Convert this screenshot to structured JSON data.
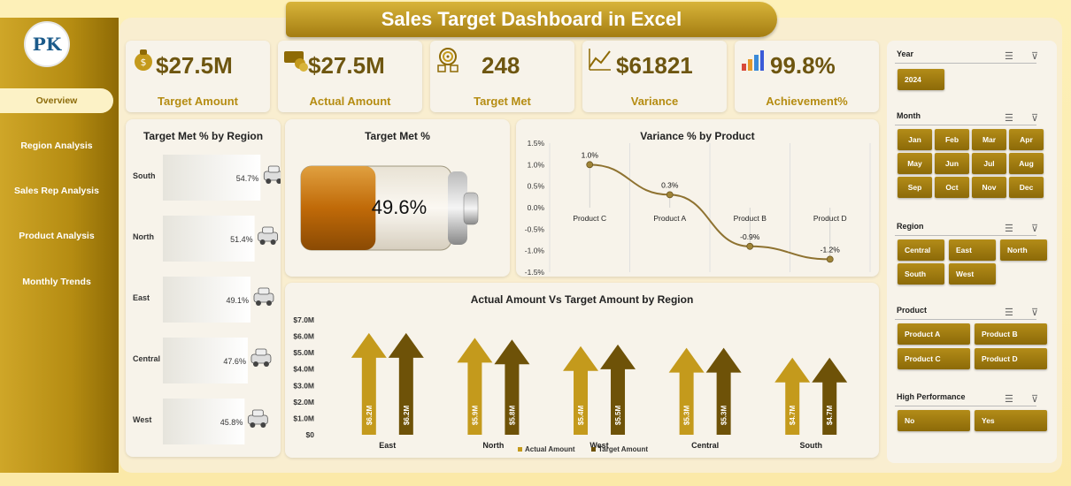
{
  "title": "Sales Target Dashboard in Excel",
  "logo_text": "PK",
  "nav": [
    "Overview",
    "Region Analysis",
    "Sales Rep Analysis",
    "Product Analysis",
    "Monthly Trends"
  ],
  "kpis": [
    {
      "value": "$27.5M",
      "label": "Target Amount",
      "icon": "money-bag-icon"
    },
    {
      "value": "$27.5M",
      "label": "Actual Amount",
      "icon": "cash-coins-icon"
    },
    {
      "value": "248",
      "label": "Target Met",
      "icon": "target-icon"
    },
    {
      "value": "$61821",
      "label": "Variance",
      "icon": "trend-line-icon"
    },
    {
      "value": "99.8%",
      "label": "Achievement%",
      "icon": "bar-growth-icon"
    }
  ],
  "colors": {
    "gold": "#b58c12",
    "dark_gold": "#7a5d0a",
    "bar_light": "#c49a1c",
    "bar_dark": "#6e5208"
  },
  "slicers": {
    "year": {
      "label": "Year",
      "items": [
        "2024"
      ]
    },
    "month": {
      "label": "Month",
      "items": [
        "Jan",
        "Feb",
        "Mar",
        "Apr",
        "May",
        "Jun",
        "Jul",
        "Aug",
        "Sep",
        "Oct",
        "Nov",
        "Dec"
      ]
    },
    "region": {
      "label": "Region",
      "items": [
        "Central",
        "East",
        "North",
        "South",
        "West"
      ]
    },
    "product": {
      "label": "Product",
      "items": [
        "Product A",
        "Product B",
        "Product C",
        "Product D"
      ]
    },
    "high_performance": {
      "label": "High Performance",
      "items": [
        "No",
        "Yes"
      ]
    }
  },
  "chart_data": [
    {
      "type": "bar",
      "title": "Target Met % by Region",
      "categories": [
        "South",
        "North",
        "East",
        "Central",
        "West"
      ],
      "values": [
        54.7,
        51.4,
        49.1,
        47.6,
        45.8
      ],
      "labels": [
        "54.7%",
        "51.4%",
        "49.1%",
        "47.6%",
        "45.8%"
      ],
      "orientation": "horizontal",
      "xlim": [
        0,
        100
      ]
    },
    {
      "type": "gauge",
      "title": "Target Met %",
      "value": 49.6,
      "label": "49.6%"
    },
    {
      "type": "line",
      "title": "Variance % by Product",
      "categories": [
        "Product C",
        "Product A",
        "Product B",
        "Product D"
      ],
      "values": [
        1.0,
        0.3,
        -0.9,
        -1.2
      ],
      "labels": [
        "1.0%",
        "0.3%",
        "-0.9%",
        "-1.2%"
      ],
      "ylim": [
        -1.5,
        1.5
      ],
      "yticks": [
        "1.5%",
        "1.0%",
        "0.5%",
        "0.0%",
        "-0.5%",
        "-1.0%",
        "-1.5%"
      ],
      "grid": true
    },
    {
      "type": "bar",
      "title": "Actual Amount Vs Target Amount by Region",
      "categories": [
        "East",
        "North",
        "West",
        "Central",
        "South"
      ],
      "series": [
        {
          "name": "Actual Amount",
          "values": [
            6.2,
            5.9,
            5.4,
            5.3,
            4.7
          ],
          "labels": [
            "$6.2M",
            "$5.9M",
            "$5.4M",
            "$5.3M",
            "$4.7M"
          ]
        },
        {
          "name": "Target Amount",
          "values": [
            6.2,
            5.8,
            5.5,
            5.3,
            4.7
          ],
          "labels": [
            "$6.2M",
            "$5.8M",
            "$5.5M",
            "$5.3M",
            "$4.7M"
          ]
        }
      ],
      "ylim": [
        0,
        7
      ],
      "yticks": [
        "$0",
        "$1.0M",
        "$2.0M",
        "$3.0M",
        "$4.0M",
        "$5.0M",
        "$6.0M",
        "$7.0M"
      ],
      "legend": "bottom"
    }
  ]
}
